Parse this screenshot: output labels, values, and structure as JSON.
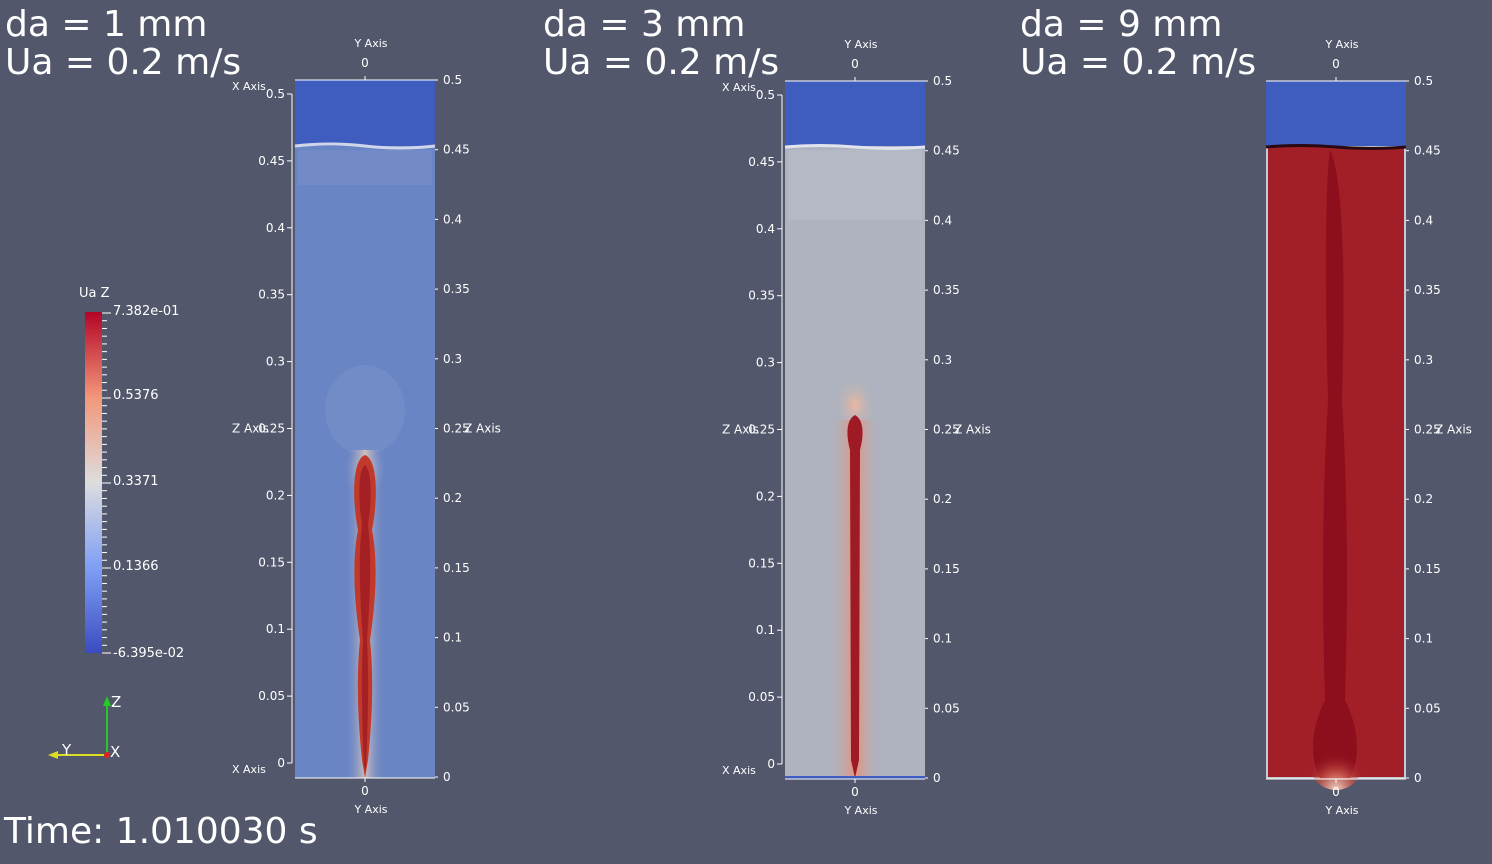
{
  "panels": [
    {
      "diameter_label": "da = 1 mm",
      "velocity_label": "Ua = 0.2 m/s",
      "state": "bubble-plume"
    },
    {
      "diameter_label": "da = 3 mm",
      "velocity_label": "Ua = 0.2 m/s",
      "state": "narrow-jet"
    },
    {
      "diameter_label": "da = 9 mm",
      "velocity_label": "Ua = 0.2 m/s",
      "state": "filled-column"
    }
  ],
  "axes": {
    "x_axis_label": "X Axis",
    "y_axis_label": "Y Axis",
    "z_axis_label": "Z Axis",
    "y_tick_label": "0",
    "z_ticks": [
      "0",
      "0.05",
      "0.1",
      "0.15",
      "0.2",
      "0.25",
      "0.3",
      "0.35",
      "0.4",
      "0.45",
      "0.5"
    ],
    "z_range": [
      0,
      0.5
    ]
  },
  "colorbar": {
    "title": "Ua Z",
    "max_label": "7.382e-01",
    "min_label": "-6.395e-02",
    "tick_labels": [
      "0.5376",
      "0.3371",
      "0.1366"
    ],
    "colormap": [
      "#3b4cc0",
      "#dddddd",
      "#b40426"
    ]
  },
  "orientation": {
    "z": "Z",
    "y": "Y",
    "x": "X"
  },
  "time_label": "Time: 1.010030 s",
  "colors": {
    "background": "#52576b",
    "liquid_top": "#3f5dbf",
    "panel1_fill": "#6a85c4",
    "panel2_fill": "#aeb3bf",
    "panel3_fill": "#a21f27",
    "jet": "#9e1a24"
  }
}
